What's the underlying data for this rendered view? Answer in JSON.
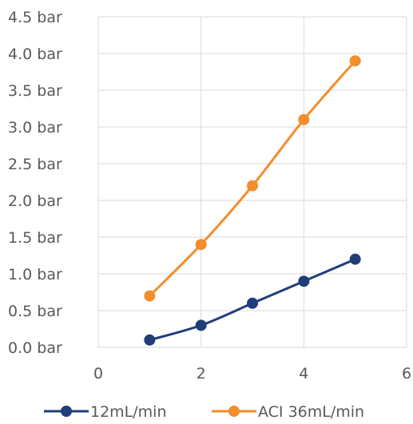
{
  "chart_data": {
    "type": "line",
    "title": "",
    "xlabel": "",
    "ylabel": "",
    "xlim": [
      0,
      6
    ],
    "ylim": [
      0,
      4.5
    ],
    "x_ticks": [
      0,
      2,
      4,
      6
    ],
    "x_tick_labels": [
      "0",
      "2",
      "4",
      "6"
    ],
    "y_ticks": [
      0,
      0.5,
      1.0,
      1.5,
      2.0,
      2.5,
      3.0,
      3.5,
      4.0,
      4.5
    ],
    "y_tick_labels": [
      "0.0 bar",
      "0.5 bar",
      "1.0 bar",
      "1.5 bar",
      "2.0 bar",
      "2.5 bar",
      "3.0 bar",
      "3.5 bar",
      "4.0 bar",
      "4.5 bar"
    ],
    "grid": true,
    "legend_position": "bottom",
    "series": [
      {
        "name": "12mL/min",
        "color": "#1f3d7a",
        "x": [
          1,
          2,
          3,
          4,
          5
        ],
        "y": [
          0.1,
          0.3,
          0.6,
          0.9,
          1.2
        ]
      },
      {
        "name": "ACI 36mL/min",
        "color": "#f28e2b",
        "x": [
          1,
          2,
          3,
          4,
          5
        ],
        "y": [
          0.7,
          1.4,
          2.2,
          3.1,
          3.9
        ]
      }
    ]
  }
}
